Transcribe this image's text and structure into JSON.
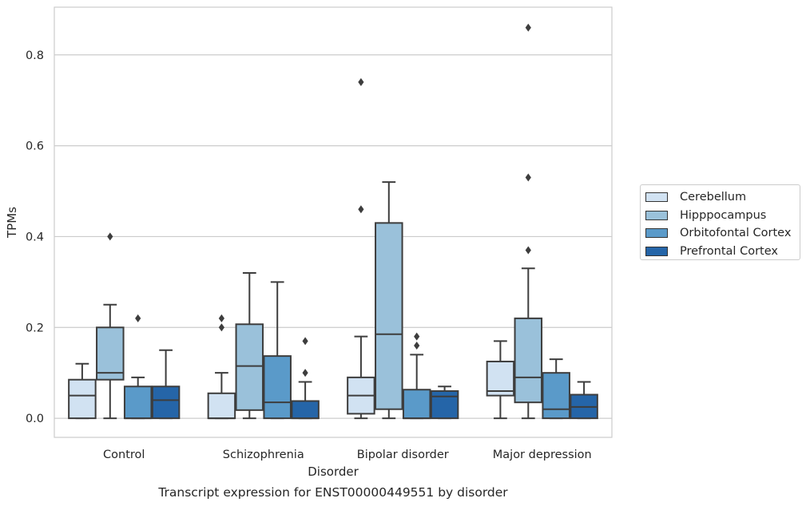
{
  "chart_data": {
    "type": "box",
    "title": "Transcript expression for ENST00000449551 by disorder",
    "xlabel": "Disorder",
    "ylabel": "TPMs",
    "ylim": [
      -0.042,
      0.905
    ],
    "yticks": [
      "0.0",
      "0.2",
      "0.4",
      "0.6",
      "0.8"
    ],
    "grid": "horizontal",
    "legend_position": "right",
    "categories": [
      "Control",
      "Schizophrenia",
      "Bipolar disorder",
      "Major depression"
    ],
    "series": [
      {
        "name": "Cerebellum",
        "color": "#d1e2f2",
        "boxes": [
          {
            "whislo": 0.0,
            "q1": 0.0,
            "med": 0.05,
            "q3": 0.085,
            "whishi": 0.12,
            "fliers": []
          },
          {
            "whislo": 0.0,
            "q1": 0.0,
            "med": 0.0,
            "q3": 0.055,
            "whishi": 0.1,
            "fliers": [
              0.2,
              0.22
            ]
          },
          {
            "whislo": 0.0,
            "q1": 0.01,
            "med": 0.05,
            "q3": 0.09,
            "whishi": 0.18,
            "fliers": [
              0.46,
              0.74
            ]
          },
          {
            "whislo": 0.0,
            "q1": 0.05,
            "med": 0.06,
            "q3": 0.125,
            "whishi": 0.17,
            "fliers": []
          }
        ]
      },
      {
        "name": "Hipppocampus",
        "color": "#9ac1da",
        "boxes": [
          {
            "whislo": 0.0,
            "q1": 0.085,
            "med": 0.1,
            "q3": 0.2,
            "whishi": 0.25,
            "fliers": [
              0.4
            ]
          },
          {
            "whislo": 0.0,
            "q1": 0.018,
            "med": 0.115,
            "q3": 0.207,
            "whishi": 0.32,
            "fliers": []
          },
          {
            "whislo": 0.0,
            "q1": 0.02,
            "med": 0.185,
            "q3": 0.43,
            "whishi": 0.52,
            "fliers": []
          },
          {
            "whislo": 0.0,
            "q1": 0.035,
            "med": 0.09,
            "q3": 0.22,
            "whishi": 0.33,
            "fliers": [
              0.37,
              0.53,
              0.86
            ]
          }
        ]
      },
      {
        "name": "Orbitofontal Cortex",
        "color": "#5a9ac9",
        "boxes": [
          {
            "whislo": 0.0,
            "q1": 0.0,
            "med": 0.0,
            "q3": 0.07,
            "whishi": 0.09,
            "fliers": [
              0.22
            ]
          },
          {
            "whislo": 0.0,
            "q1": 0.0,
            "med": 0.035,
            "q3": 0.137,
            "whishi": 0.3,
            "fliers": []
          },
          {
            "whislo": 0.0,
            "q1": 0.0,
            "med": 0.0,
            "q3": 0.063,
            "whishi": 0.14,
            "fliers": [
              0.16,
              0.18
            ]
          },
          {
            "whislo": 0.0,
            "q1": 0.0,
            "med": 0.02,
            "q3": 0.1,
            "whishi": 0.13,
            "fliers": []
          }
        ]
      },
      {
        "name": "Prefrontal Cortex",
        "color": "#2565a8",
        "boxes": [
          {
            "whislo": 0.0,
            "q1": 0.0,
            "med": 0.04,
            "q3": 0.07,
            "whishi": 0.15,
            "fliers": []
          },
          {
            "whislo": 0.0,
            "q1": 0.0,
            "med": 0.0,
            "q3": 0.038,
            "whishi": 0.08,
            "fliers": [
              0.1,
              0.17
            ]
          },
          {
            "whislo": 0.0,
            "q1": 0.0,
            "med": 0.048,
            "q3": 0.06,
            "whishi": 0.07,
            "fliers": []
          },
          {
            "whislo": 0.0,
            "q1": 0.0,
            "med": 0.025,
            "q3": 0.052,
            "whishi": 0.08,
            "fliers": []
          }
        ]
      }
    ]
  }
}
